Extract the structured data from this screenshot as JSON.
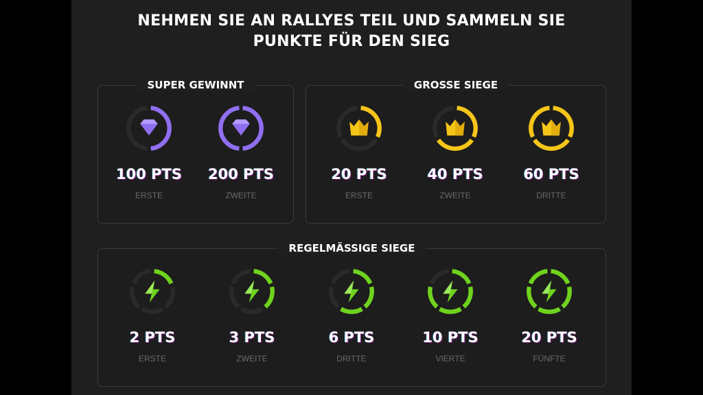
{
  "title": {
    "line1": "NEHMEN SIE AN RALLYES TEIL UND SAMMELN SIE",
    "line2": "PUNKTE FÜR DEN SIEG"
  },
  "colors": {
    "purple": "#8f6ff0",
    "gold": "#f5c518",
    "green": "#6fd31e",
    "ring_inactive": "#2a2a2a"
  },
  "super": {
    "heading": "SUPER GEWINNT",
    "icon": "diamond-icon",
    "items": [
      {
        "points": "100 PTS",
        "rank": "ERSTE"
      },
      {
        "points": "200 PTS",
        "rank": "ZWEITE"
      }
    ]
  },
  "big": {
    "heading": "GROSSE SIEGE",
    "icon": "crown-icon",
    "items": [
      {
        "points": "20 PTS",
        "rank": "ERSTE"
      },
      {
        "points": "40 PTS",
        "rank": "ZWEITE"
      },
      {
        "points": "60 PTS",
        "rank": "DRITTE"
      }
    ]
  },
  "regular": {
    "heading": "REGELMÄSSIGE SIEGE",
    "icon": "lightning-icon",
    "items": [
      {
        "points": "2 PTS",
        "rank": "ERSTE"
      },
      {
        "points": "3 PTS",
        "rank": "ZWEITE"
      },
      {
        "points": "6 PTS",
        "rank": "DRITTE"
      },
      {
        "points": "10 PTS",
        "rank": "VIERTE"
      },
      {
        "points": "20 PTS",
        "rank": "FÜNFTE"
      }
    ]
  }
}
